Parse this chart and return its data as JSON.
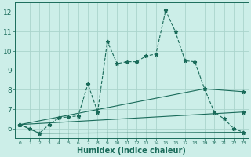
{
  "xlabel": "Humidex (Indice chaleur)",
  "bg_color": "#cceee8",
  "grid_color": "#aad4cc",
  "line_color": "#1a6b5a",
  "xlim": [
    -0.5,
    23.5
  ],
  "ylim": [
    5.5,
    12.5
  ],
  "yticks": [
    6,
    7,
    8,
    9,
    10,
    11,
    12
  ],
  "xticks": [
    0,
    1,
    2,
    3,
    4,
    5,
    6,
    7,
    8,
    9,
    10,
    11,
    12,
    13,
    14,
    15,
    16,
    17,
    18,
    19,
    20,
    21,
    22,
    23
  ],
  "line1_x": [
    0,
    1,
    2,
    3,
    4,
    5,
    6,
    7,
    8,
    9,
    10,
    11,
    12,
    13,
    14,
    15,
    16,
    17,
    18,
    19,
    20,
    21,
    22,
    23
  ],
  "line1_y": [
    6.2,
    6.0,
    5.75,
    6.2,
    6.55,
    6.6,
    6.65,
    8.3,
    6.85,
    10.5,
    9.35,
    9.45,
    9.45,
    9.75,
    9.85,
    12.1,
    11.0,
    9.5,
    9.45,
    8.05,
    6.85,
    6.5,
    6.0,
    5.8
  ],
  "line2_x": [
    0,
    2,
    23
  ],
  "line2_y": [
    6.2,
    5.75,
    5.8
  ],
  "line3_x": [
    0,
    19,
    23
  ],
  "line3_y": [
    6.2,
    8.05,
    7.9
  ],
  "line4_x": [
    0,
    23
  ],
  "line4_y": [
    6.2,
    6.85
  ]
}
